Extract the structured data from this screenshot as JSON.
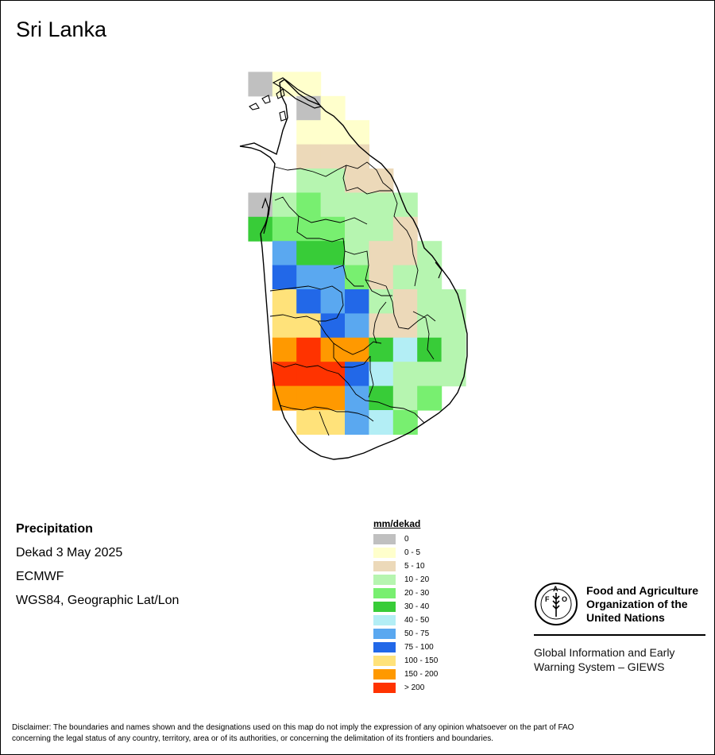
{
  "title": "Sri Lanka",
  "info": {
    "heading": "Precipitation",
    "period": "Dekad 3 May 2025",
    "model": "ECMWF",
    "projection": "WGS84, Geographic Lat/Lon"
  },
  "legend": {
    "title": "mm/dekad",
    "classes": [
      {
        "label": "0",
        "color": "#c0c0c0"
      },
      {
        "label": "0 - 5",
        "color": "#ffffcc"
      },
      {
        "label": "5 - 10",
        "color": "#ecd9b9"
      },
      {
        "label": "10 - 20",
        "color": "#b6f5b0"
      },
      {
        "label": "20 - 30",
        "color": "#78ef70"
      },
      {
        "label": "30 - 40",
        "color": "#38cc38"
      },
      {
        "label": "40 - 50",
        "color": "#b3eef5"
      },
      {
        "label": "50 - 75",
        "color": "#5aa8f0"
      },
      {
        "label": "75 - 100",
        "color": "#2268e8"
      },
      {
        "label": "100 - 150",
        "color": "#ffe27a"
      },
      {
        "label": "150 - 200",
        "color": "#ff9900"
      },
      {
        "label": "> 200",
        "color": "#ff3300"
      }
    ]
  },
  "grid": {
    "cols": 10,
    "rows": 16,
    "note_codes": "0 = no data; 1..12 = legend class index (0-based + 1)",
    "cells": [
      [
        0,
        0,
        0,
        0,
        0,
        0,
        0,
        0,
        0,
        0
      ],
      [
        0,
        1,
        2,
        2,
        0,
        0,
        0,
        0,
        0,
        0
      ],
      [
        0,
        0,
        0,
        1,
        2,
        0,
        0,
        0,
        0,
        0
      ],
      [
        0,
        0,
        0,
        2,
        2,
        2,
        0,
        0,
        0,
        0
      ],
      [
        0,
        0,
        0,
        3,
        3,
        3,
        0,
        0,
        0,
        0
      ],
      [
        0,
        0,
        0,
        4,
        4,
        3,
        3,
        0,
        0,
        0
      ],
      [
        0,
        1,
        4,
        5,
        4,
        4,
        4,
        4,
        0,
        0
      ],
      [
        0,
        6,
        5,
        5,
        5,
        4,
        4,
        3,
        0,
        0
      ],
      [
        0,
        0,
        8,
        6,
        6,
        4,
        3,
        3,
        4,
        0
      ],
      [
        0,
        0,
        9,
        8,
        8,
        5,
        3,
        4,
        4,
        0
      ],
      [
        0,
        0,
        10,
        9,
        8,
        9,
        4,
        3,
        4,
        4
      ],
      [
        0,
        0,
        10,
        10,
        9,
        8,
        3,
        3,
        4,
        4
      ],
      [
        0,
        0,
        11,
        12,
        11,
        11,
        6,
        7,
        6,
        4
      ],
      [
        0,
        0,
        12,
        12,
        12,
        9,
        7,
        4,
        4,
        4
      ],
      [
        0,
        0,
        11,
        11,
        11,
        8,
        6,
        4,
        5,
        0
      ],
      [
        0,
        0,
        0,
        10,
        10,
        8,
        7,
        5,
        0,
        0
      ]
    ]
  },
  "fao": {
    "name_line1": "Food and Agriculture",
    "name_line2": "Organization of the",
    "name_line3": "United Nations",
    "emblem_letters": "FAO",
    "emblem_motto": "FIAT PANIS",
    "giews_line1": "Global Information and Early",
    "giews_line2": "Warning System – GIEWS"
  },
  "disclaimer_line1": "Disclaimer: The boundaries and names shown and the designations used on this map do not imply the expression of any opinion whatsoever on the part of FAO",
  "disclaimer_line2": "concerning the legal status of any country, territory, area or of its authorities, or concerning the delimitation of its frontiers and boundaries."
}
